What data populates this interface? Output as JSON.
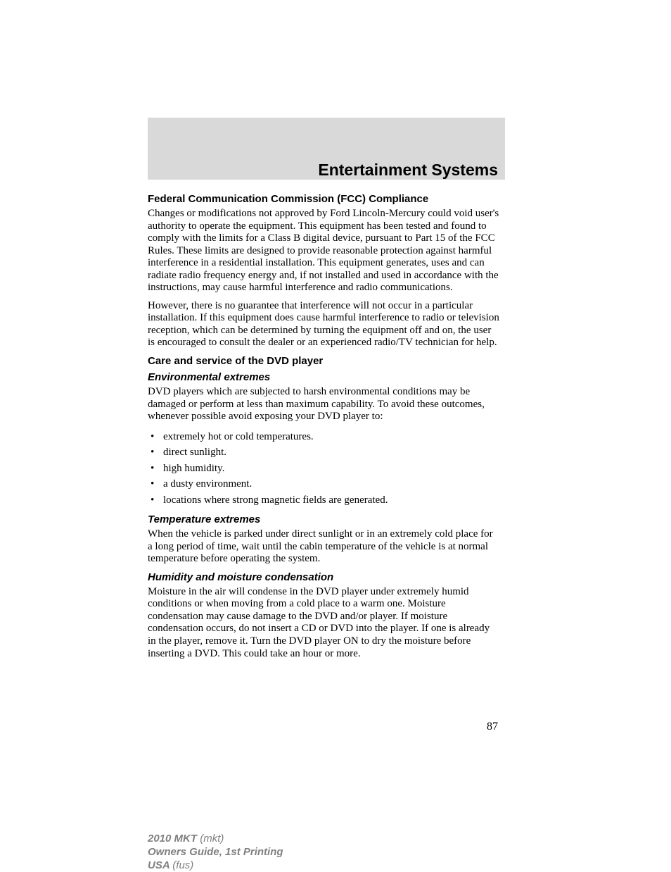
{
  "chapter_title": "Entertainment Systems",
  "page_number": "87",
  "sections": {
    "fcc": {
      "heading": "Federal Communication Commission (FCC) Compliance",
      "p1": "Changes or modifications not approved by Ford Lincoln-Mercury could void user's authority to operate the equipment. This equipment has been tested and found to comply with the limits for a Class B digital device, pursuant to Part 15 of the FCC Rules. These limits are designed to provide reasonable protection against harmful interference in a residential installation. This equipment generates, uses and can radiate radio frequency energy and, if not installed and used in accordance with the instructions, may cause harmful interference and radio communications.",
      "p2": "However, there is no guarantee that interference will not occur in a particular installation. If this equipment does cause harmful interference to radio or television reception, which can be determined by turning the equipment off and on, the user is encouraged to consult the dealer or an experienced radio/TV technician for help."
    },
    "care": {
      "heading": "Care and service of the DVD player",
      "env": {
        "heading": "Environmental extremes",
        "p1": "DVD players which are subjected to harsh environmental conditions may be damaged or perform at less than maximum capability. To avoid these outcomes, whenever possible avoid exposing your DVD player to:",
        "bullets": [
          "extremely hot or cold temperatures.",
          "direct sunlight.",
          "high humidity.",
          "a dusty environment.",
          "locations where strong magnetic fields are generated."
        ]
      },
      "temp": {
        "heading": "Temperature extremes",
        "p1": "When the vehicle is parked under direct sunlight or in an extremely cold place for a long period of time, wait until the cabin temperature of the vehicle is at normal temperature before operating the system."
      },
      "humidity": {
        "heading": "Humidity and moisture condensation",
        "p1": "Moisture in the air will condense in the DVD player under extremely humid conditions or when moving from a cold place to a warm one. Moisture condensation may cause damage to the DVD and/or player. If moisture condensation occurs, do not insert a CD or DVD into the player. If one is already in the player, remove it. Turn the DVD player ON to dry the moisture before inserting a DVD. This could take an hour or more."
      }
    }
  },
  "footer": {
    "line1_bold": "2010 MKT ",
    "line1_light": "(mkt)",
    "line2": "Owners Guide, 1st Printing",
    "line3_bold": "USA ",
    "line3_light": "(fus)"
  },
  "colors": {
    "header_band": "#d9d9d9",
    "text": "#000000",
    "footer_text": "#808080",
    "background": "#ffffff"
  }
}
